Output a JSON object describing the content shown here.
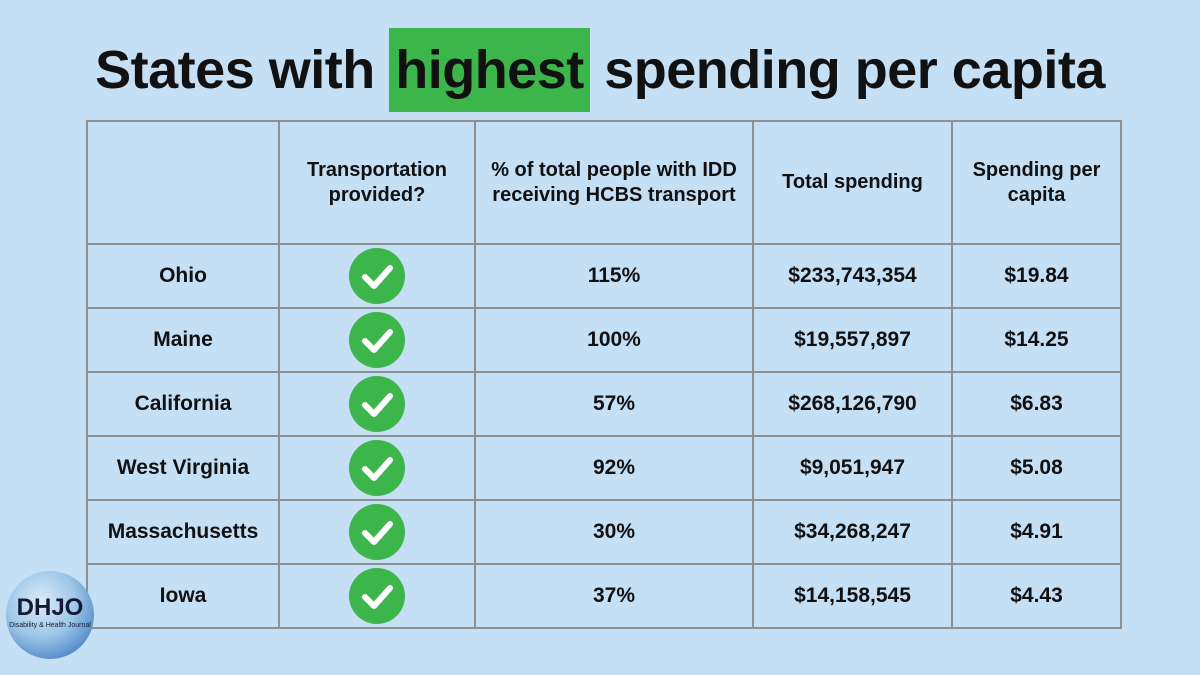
{
  "title": {
    "before": "States with",
    "highlight": "highest",
    "after": "spending per capita",
    "highlight_color": "#3cb54a"
  },
  "table": {
    "headers": [
      "",
      "Transportation provided?",
      "% of total people with IDD receiving HCBS transport",
      "Total spending",
      "Spending per capita"
    ],
    "rows": [
      {
        "state": "Ohio",
        "provided": "check-icon",
        "percent": "115%",
        "total": "$233,743,354",
        "per_capita": "$19.84"
      },
      {
        "state": "Maine",
        "provided": "check-icon",
        "percent": "100%",
        "total": "$19,557,897",
        "per_capita": "$14.25"
      },
      {
        "state": "California",
        "provided": "check-icon",
        "percent": "57%",
        "total": "$268,126,790",
        "per_capita": "$6.83"
      },
      {
        "state": "West Virginia",
        "provided": "check-icon",
        "percent": "92%",
        "total": "$9,051,947",
        "per_capita": "$5.08"
      },
      {
        "state": "Massachusetts",
        "provided": "check-icon",
        "percent": "30%",
        "total": "$34,268,247",
        "per_capita": "$4.91"
      },
      {
        "state": "Iowa",
        "provided": "check-icon",
        "percent": "37%",
        "total": "$14,158,545",
        "per_capita": "$4.43"
      }
    ]
  },
  "logo": {
    "name": "DHJO",
    "subtitle": "Disability & Health Journal"
  },
  "colors": {
    "background": "#c5dff5",
    "check_green": "#3cb54a",
    "grid": "#8f8f8f"
  }
}
